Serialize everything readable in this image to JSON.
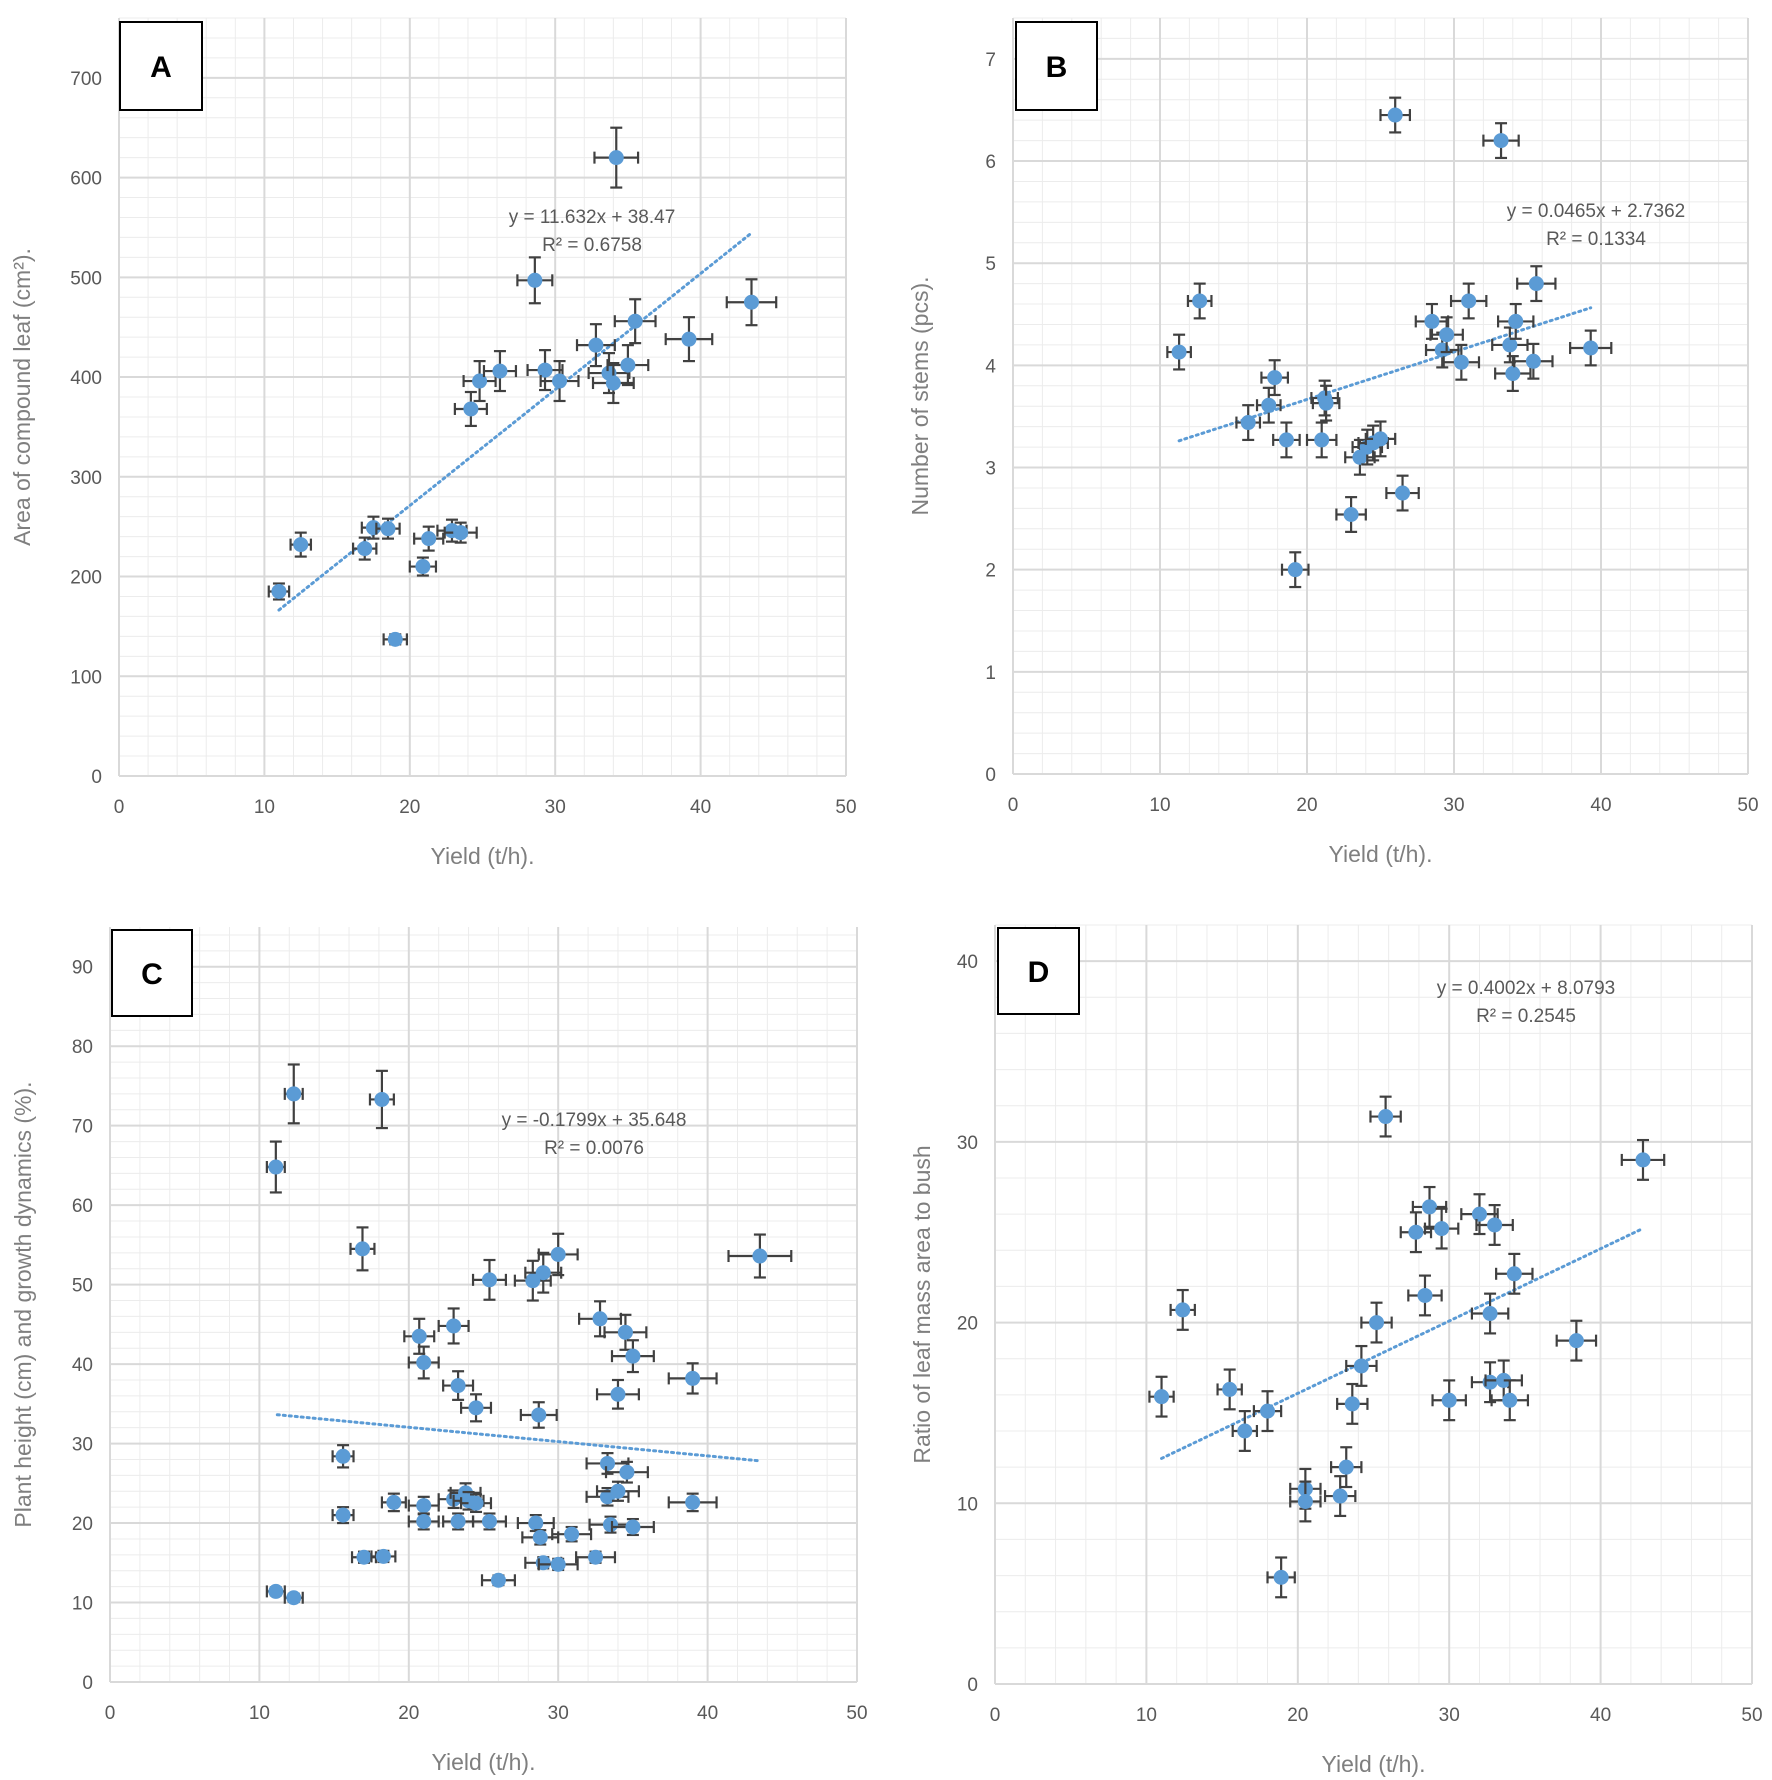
{
  "colors": {
    "marker": "#5b9bd5",
    "trend": "#5b9bd5",
    "errorbar": "#404040",
    "grid_major": "#d9d9d9",
    "grid_minor": "#ececec",
    "frame": "#000000"
  },
  "chart_data": [
    {
      "panel": "A",
      "type": "scatter",
      "xlabel": "Yield (t/h).",
      "ylabel": "Area of compound leaf (cm²).",
      "xlim": [
        0,
        50
      ],
      "ylim": [
        0,
        760
      ],
      "xticks": [
        "0",
        "10",
        "20",
        "30",
        "40",
        "50"
      ],
      "yticks": [
        "0",
        "100",
        "200",
        "300",
        "400",
        "500",
        "600",
        "700"
      ],
      "trend": {
        "equation": "y = 11.632x + 38.47",
        "r2": "R² = 0.6758",
        "x1": 11,
        "x2": 43.5,
        "slope": 11.632,
        "intercept": 38.47
      },
      "points": [
        {
          "x": 11.0,
          "y": 185,
          "ex": 0.7,
          "ey": 8
        },
        {
          "x": 12.5,
          "y": 232,
          "ex": 0.7,
          "ey": 12
        },
        {
          "x": 19.0,
          "y": 137,
          "ex": 0.8,
          "ey": 5
        },
        {
          "x": 16.9,
          "y": 228,
          "ex": 0.8,
          "ey": 11
        },
        {
          "x": 17.5,
          "y": 249,
          "ex": 0.8,
          "ey": 11
        },
        {
          "x": 18.5,
          "y": 248,
          "ex": 0.8,
          "ey": 10
        },
        {
          "x": 20.9,
          "y": 210,
          "ex": 0.9,
          "ey": 9
        },
        {
          "x": 21.3,
          "y": 238,
          "ex": 1.0,
          "ey": 12
        },
        {
          "x": 22.9,
          "y": 246,
          "ex": 1.0,
          "ey": 11
        },
        {
          "x": 23.5,
          "y": 244,
          "ex": 1.1,
          "ey": 10
        },
        {
          "x": 24.2,
          "y": 368,
          "ex": 1.1,
          "ey": 17
        },
        {
          "x": 24.8,
          "y": 396,
          "ex": 1.1,
          "ey": 20
        },
        {
          "x": 26.2,
          "y": 406,
          "ex": 1.1,
          "ey": 20
        },
        {
          "x": 28.6,
          "y": 497,
          "ex": 1.2,
          "ey": 23
        },
        {
          "x": 29.3,
          "y": 407,
          "ex": 1.2,
          "ey": 20
        },
        {
          "x": 30.3,
          "y": 396,
          "ex": 1.3,
          "ey": 20
        },
        {
          "x": 32.8,
          "y": 432,
          "ex": 1.3,
          "ey": 21
        },
        {
          "x": 33.7,
          "y": 404,
          "ex": 1.4,
          "ey": 20
        },
        {
          "x": 34.0,
          "y": 394,
          "ex": 1.4,
          "ey": 20
        },
        {
          "x": 35.0,
          "y": 412,
          "ex": 1.4,
          "ey": 20
        },
        {
          "x": 35.5,
          "y": 456,
          "ex": 1.4,
          "ey": 22
        },
        {
          "x": 34.2,
          "y": 620,
          "ex": 1.5,
          "ey": 30
        },
        {
          "x": 39.2,
          "y": 438,
          "ex": 1.6,
          "ey": 22
        },
        {
          "x": 43.5,
          "y": 475,
          "ex": 1.7,
          "ey": 23
        }
      ]
    },
    {
      "panel": "B",
      "type": "scatter",
      "xlabel": "Yield (t/h).",
      "ylabel": "Number of stems (pcs).",
      "xlim": [
        0,
        50
      ],
      "ylim": [
        0,
        7.4
      ],
      "xticks": [
        "0",
        "10",
        "20",
        "30",
        "40",
        "50"
      ],
      "yticks": [
        "0",
        "1",
        "2",
        "3",
        "4",
        "5",
        "6",
        "7"
      ],
      "trend": {
        "equation": "y = 0.0465x + 2.7362",
        "r2": "R² = 0.1334",
        "x1": 11.3,
        "x2": 39.3,
        "slope": 0.0465,
        "intercept": 2.7362
      },
      "points": [
        {
          "x": 11.3,
          "y": 4.13,
          "ex": 0.8,
          "ey": 0.17
        },
        {
          "x": 12.7,
          "y": 4.63,
          "ex": 0.8,
          "ey": 0.17
        },
        {
          "x": 16.0,
          "y": 3.44,
          "ex": 0.8,
          "ey": 0.17
        },
        {
          "x": 17.4,
          "y": 3.61,
          "ex": 0.8,
          "ey": 0.17
        },
        {
          "x": 17.8,
          "y": 3.88,
          "ex": 0.9,
          "ey": 0.17
        },
        {
          "x": 18.6,
          "y": 3.27,
          "ex": 0.9,
          "ey": 0.17
        },
        {
          "x": 19.2,
          "y": 2.0,
          "ex": 0.9,
          "ey": 0.17
        },
        {
          "x": 21.0,
          "y": 3.27,
          "ex": 1.0,
          "ey": 0.17
        },
        {
          "x": 21.2,
          "y": 3.68,
          "ex": 0.9,
          "ey": 0.17
        },
        {
          "x": 21.3,
          "y": 3.63,
          "ex": 0.9,
          "ey": 0.17
        },
        {
          "x": 23.0,
          "y": 2.54,
          "ex": 1.0,
          "ey": 0.17
        },
        {
          "x": 23.6,
          "y": 3.1,
          "ex": 1.0,
          "ey": 0.17
        },
        {
          "x": 24.1,
          "y": 3.2,
          "ex": 1.0,
          "ey": 0.17
        },
        {
          "x": 24.5,
          "y": 3.24,
          "ex": 1.0,
          "ey": 0.17
        },
        {
          "x": 25.0,
          "y": 3.28,
          "ex": 1.0,
          "ey": 0.17
        },
        {
          "x": 26.0,
          "y": 6.45,
          "ex": 1.0,
          "ey": 0.17
        },
        {
          "x": 26.5,
          "y": 2.75,
          "ex": 1.1,
          "ey": 0.17
        },
        {
          "x": 28.5,
          "y": 4.43,
          "ex": 1.1,
          "ey": 0.17
        },
        {
          "x": 29.2,
          "y": 4.15,
          "ex": 1.1,
          "ey": 0.17
        },
        {
          "x": 29.5,
          "y": 4.3,
          "ex": 1.1,
          "ey": 0.17
        },
        {
          "x": 30.5,
          "y": 4.03,
          "ex": 1.2,
          "ey": 0.17
        },
        {
          "x": 31.0,
          "y": 4.63,
          "ex": 1.2,
          "ey": 0.17
        },
        {
          "x": 33.2,
          "y": 6.2,
          "ex": 1.2,
          "ey": 0.17
        },
        {
          "x": 33.8,
          "y": 4.2,
          "ex": 1.2,
          "ey": 0.17
        },
        {
          "x": 34.0,
          "y": 3.92,
          "ex": 1.2,
          "ey": 0.17
        },
        {
          "x": 34.2,
          "y": 4.43,
          "ex": 1.2,
          "ey": 0.17
        },
        {
          "x": 35.4,
          "y": 4.04,
          "ex": 1.3,
          "ey": 0.17
        },
        {
          "x": 35.6,
          "y": 4.8,
          "ex": 1.3,
          "ey": 0.17
        },
        {
          "x": 39.3,
          "y": 4.17,
          "ex": 1.4,
          "ey": 0.17
        }
      ]
    },
    {
      "panel": "C",
      "type": "scatter",
      "xlabel": "Yield (t/h).",
      "ylabel": "Plant height (cm) and growth dynamics (%).",
      "xlim": [
        0,
        50
      ],
      "ylim": [
        0,
        95
      ],
      "xticks": [
        "0",
        "10",
        "20",
        "30",
        "40",
        "50"
      ],
      "yticks": [
        "0",
        "10",
        "20",
        "30",
        "40",
        "50",
        "60",
        "70",
        "80",
        "90"
      ],
      "trend": {
        "equation": "y = -0.1799x + 35.648",
        "r2": "R² = 0.0076",
        "x1": 11.2,
        "x2": 43.5,
        "slope": -0.1799,
        "intercept": 35.648
      },
      "points": [
        {
          "x": 11.1,
          "y": 64.8,
          "ex": 0.6,
          "ey": 3.2
        },
        {
          "x": 12.3,
          "y": 74.0,
          "ex": 0.6,
          "ey": 3.7
        },
        {
          "x": 18.2,
          "y": 73.3,
          "ex": 0.8,
          "ey": 3.6
        },
        {
          "x": 16.9,
          "y": 54.5,
          "ex": 0.8,
          "ey": 2.7
        },
        {
          "x": 11.1,
          "y": 11.4,
          "ex": 0.6,
          "ey": 0.5
        },
        {
          "x": 12.3,
          "y": 10.6,
          "ex": 0.6,
          "ey": 0.5
        },
        {
          "x": 15.6,
          "y": 28.4,
          "ex": 0.7,
          "ey": 1.4
        },
        {
          "x": 15.6,
          "y": 21.0,
          "ex": 0.7,
          "ey": 1.0
        },
        {
          "x": 17.0,
          "y": 15.7,
          "ex": 0.8,
          "ey": 0.7
        },
        {
          "x": 18.3,
          "y": 15.8,
          "ex": 0.8,
          "ey": 0.7
        },
        {
          "x": 19.0,
          "y": 22.6,
          "ex": 0.8,
          "ey": 1.1
        },
        {
          "x": 20.7,
          "y": 43.5,
          "ex": 1.0,
          "ey": 2.2
        },
        {
          "x": 21.0,
          "y": 40.2,
          "ex": 1.0,
          "ey": 2.0
        },
        {
          "x": 21.0,
          "y": 22.2,
          "ex": 1.0,
          "ey": 1.1
        },
        {
          "x": 21.0,
          "y": 20.2,
          "ex": 1.0,
          "ey": 1.0
        },
        {
          "x": 23.0,
          "y": 44.8,
          "ex": 1.0,
          "ey": 2.2
        },
        {
          "x": 23.3,
          "y": 37.3,
          "ex": 1.0,
          "ey": 1.8
        },
        {
          "x": 23.0,
          "y": 23.0,
          "ex": 1.0,
          "ey": 1.1
        },
        {
          "x": 23.3,
          "y": 20.2,
          "ex": 1.0,
          "ey": 1.0
        },
        {
          "x": 23.8,
          "y": 23.8,
          "ex": 1.0,
          "ey": 1.2
        },
        {
          "x": 24.0,
          "y": 22.8,
          "ex": 1.0,
          "ey": 1.1
        },
        {
          "x": 24.5,
          "y": 22.5,
          "ex": 1.0,
          "ey": 1.1
        },
        {
          "x": 24.5,
          "y": 34.5,
          "ex": 1.0,
          "ey": 1.7
        },
        {
          "x": 25.4,
          "y": 50.6,
          "ex": 1.1,
          "ey": 2.5
        },
        {
          "x": 25.4,
          "y": 20.2,
          "ex": 1.1,
          "ey": 1.0
        },
        {
          "x": 26.0,
          "y": 12.8,
          "ex": 1.1,
          "ey": 0.6
        },
        {
          "x": 28.3,
          "y": 50.5,
          "ex": 1.2,
          "ey": 2.5
        },
        {
          "x": 28.5,
          "y": 20.0,
          "ex": 1.2,
          "ey": 1.0
        },
        {
          "x": 28.7,
          "y": 33.6,
          "ex": 1.2,
          "ey": 1.6
        },
        {
          "x": 28.8,
          "y": 18.2,
          "ex": 1.2,
          "ey": 0.9
        },
        {
          "x": 29.0,
          "y": 51.5,
          "ex": 1.2,
          "ey": 2.5
        },
        {
          "x": 29.0,
          "y": 15.0,
          "ex": 1.2,
          "ey": 0.7
        },
        {
          "x": 30.0,
          "y": 53.8,
          "ex": 1.3,
          "ey": 2.6
        },
        {
          "x": 30.0,
          "y": 14.8,
          "ex": 1.3,
          "ey": 0.7
        },
        {
          "x": 30.9,
          "y": 18.6,
          "ex": 1.3,
          "ey": 0.9
        },
        {
          "x": 32.5,
          "y": 15.7,
          "ex": 1.3,
          "ey": 0.7
        },
        {
          "x": 32.8,
          "y": 45.7,
          "ex": 1.4,
          "ey": 2.2
        },
        {
          "x": 33.3,
          "y": 27.5,
          "ex": 1.4,
          "ey": 1.3
        },
        {
          "x": 33.3,
          "y": 23.3,
          "ex": 1.4,
          "ey": 1.1
        },
        {
          "x": 33.5,
          "y": 19.8,
          "ex": 1.4,
          "ey": 1.0
        },
        {
          "x": 34.0,
          "y": 24.0,
          "ex": 1.4,
          "ey": 1.2
        },
        {
          "x": 34.0,
          "y": 36.2,
          "ex": 1.4,
          "ey": 1.8
        },
        {
          "x": 34.5,
          "y": 44.0,
          "ex": 1.4,
          "ey": 2.2
        },
        {
          "x": 34.6,
          "y": 26.4,
          "ex": 1.4,
          "ey": 1.3
        },
        {
          "x": 35.0,
          "y": 19.5,
          "ex": 1.4,
          "ey": 1.0
        },
        {
          "x": 35.0,
          "y": 41.0,
          "ex": 1.4,
          "ey": 2.0
        },
        {
          "x": 39.0,
          "y": 38.2,
          "ex": 1.6,
          "ey": 1.9
        },
        {
          "x": 39.0,
          "y": 22.6,
          "ex": 1.6,
          "ey": 1.1
        },
        {
          "x": 43.5,
          "y": 53.6,
          "ex": 2.1,
          "ey": 2.7
        }
      ]
    },
    {
      "panel": "D",
      "type": "scatter",
      "xlabel": "Yield (t/h).",
      "ylabel": "Ratio of leaf mass area to bush",
      "xlim": [
        0,
        50
      ],
      "ylim": [
        0,
        42
      ],
      "xticks": [
        "0",
        "10",
        "20",
        "30",
        "40",
        "50"
      ],
      "yticks": [
        "0",
        "10",
        "20",
        "30",
        "40"
      ],
      "trend": {
        "equation": "y = 0.4002x + 8.0793",
        "r2": "R² = 0.2545",
        "x1": 11.0,
        "x2": 42.8,
        "slope": 0.4002,
        "intercept": 8.0793
      },
      "points": [
        {
          "x": 11.0,
          "y": 15.9,
          "ex": 0.8,
          "ey": 1.1
        },
        {
          "x": 12.4,
          "y": 20.7,
          "ex": 0.8,
          "ey": 1.1
        },
        {
          "x": 15.5,
          "y": 16.3,
          "ex": 0.8,
          "ey": 1.1
        },
        {
          "x": 16.5,
          "y": 14.0,
          "ex": 0.8,
          "ey": 1.1
        },
        {
          "x": 18.0,
          "y": 15.1,
          "ex": 0.9,
          "ey": 1.1
        },
        {
          "x": 18.9,
          "y": 5.9,
          "ex": 0.9,
          "ey": 1.1
        },
        {
          "x": 20.5,
          "y": 10.8,
          "ex": 1.0,
          "ey": 1.1
        },
        {
          "x": 20.5,
          "y": 10.1,
          "ex": 1.0,
          "ey": 1.1
        },
        {
          "x": 22.8,
          "y": 10.4,
          "ex": 1.0,
          "ey": 1.1
        },
        {
          "x": 23.2,
          "y": 12.0,
          "ex": 1.0,
          "ey": 1.1
        },
        {
          "x": 23.6,
          "y": 15.5,
          "ex": 1.0,
          "ey": 1.1
        },
        {
          "x": 24.2,
          "y": 17.6,
          "ex": 1.0,
          "ey": 1.1
        },
        {
          "x": 25.2,
          "y": 20.0,
          "ex": 1.0,
          "ey": 1.1
        },
        {
          "x": 25.8,
          "y": 31.4,
          "ex": 1.0,
          "ey": 1.1
        },
        {
          "x": 27.8,
          "y": 25.0,
          "ex": 1.0,
          "ey": 1.1
        },
        {
          "x": 28.4,
          "y": 21.5,
          "ex": 1.1,
          "ey": 1.1
        },
        {
          "x": 28.7,
          "y": 26.4,
          "ex": 1.1,
          "ey": 1.1
        },
        {
          "x": 29.5,
          "y": 25.2,
          "ex": 1.1,
          "ey": 1.1
        },
        {
          "x": 30.0,
          "y": 15.7,
          "ex": 1.1,
          "ey": 1.1
        },
        {
          "x": 32.0,
          "y": 26.0,
          "ex": 1.2,
          "ey": 1.1
        },
        {
          "x": 32.7,
          "y": 20.5,
          "ex": 1.2,
          "ey": 1.1
        },
        {
          "x": 32.7,
          "y": 16.7,
          "ex": 1.2,
          "ey": 1.1
        },
        {
          "x": 33.0,
          "y": 25.4,
          "ex": 1.2,
          "ey": 1.1
        },
        {
          "x": 33.6,
          "y": 16.8,
          "ex": 1.2,
          "ey": 1.1
        },
        {
          "x": 34.0,
          "y": 15.7,
          "ex": 1.2,
          "ey": 1.1
        },
        {
          "x": 34.3,
          "y": 22.7,
          "ex": 1.2,
          "ey": 1.1
        },
        {
          "x": 38.4,
          "y": 19.0,
          "ex": 1.3,
          "ey": 1.1
        },
        {
          "x": 42.8,
          "y": 29.0,
          "ex": 1.4,
          "ey": 1.1
        }
      ]
    }
  ]
}
